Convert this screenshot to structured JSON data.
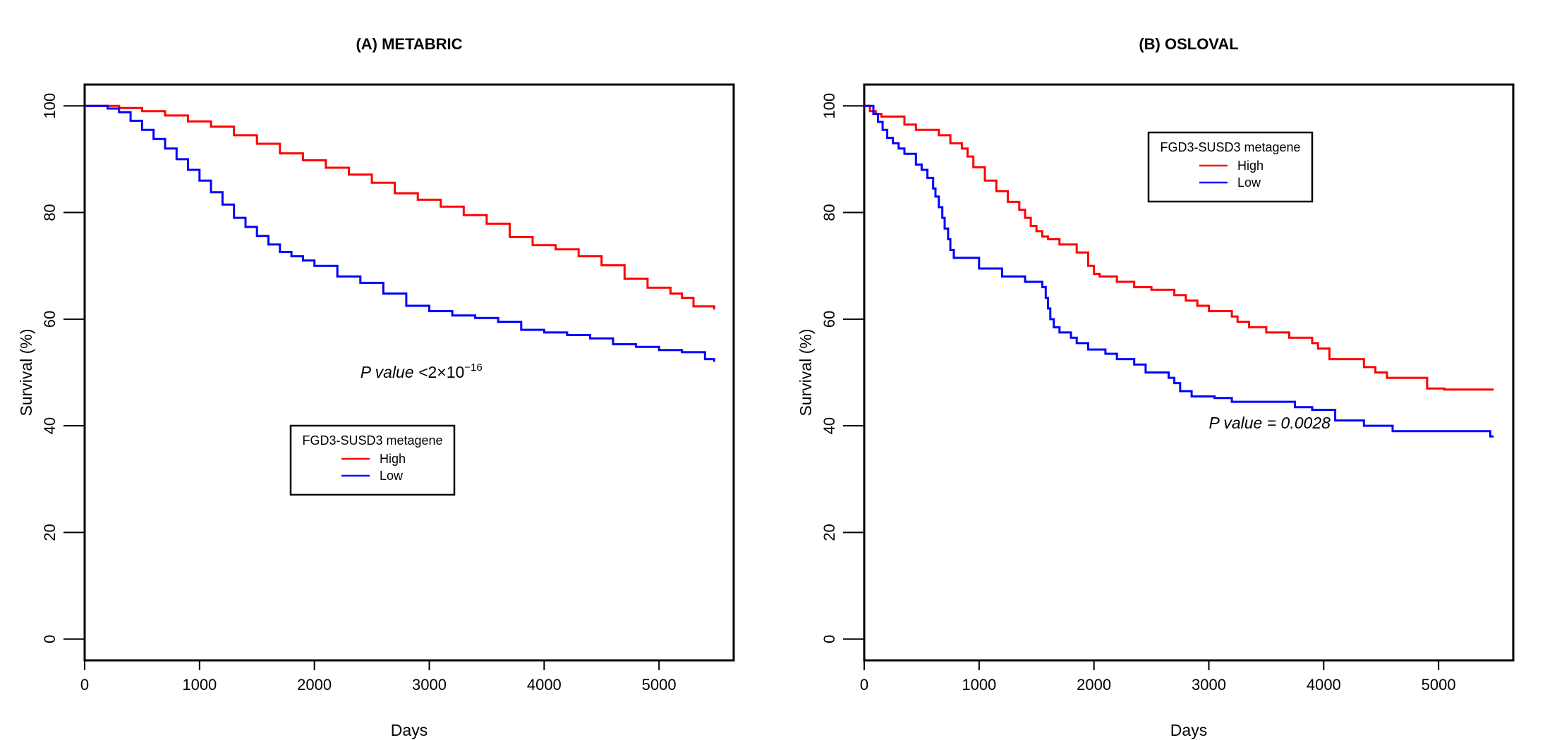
{
  "chart_data": [
    {
      "type": "line",
      "step": true,
      "title": "(A) METABRIC",
      "xlabel": "Days",
      "ylabel": "Survival (%)",
      "xlim": [
        0,
        5650
      ],
      "ylim": [
        -4,
        104
      ],
      "xticks": [
        "0",
        "1000",
        "2000",
        "3000",
        "4000",
        "5000"
      ],
      "yticks": [
        "0",
        "20",
        "40",
        "60",
        "80",
        "100"
      ],
      "annotation": {
        "prefix": "P value <",
        "base": "2×10",
        "exponent": "−16",
        "x": 2400,
        "y": 49
      },
      "legend": {
        "title": "FGD3-SUSD3 metagene",
        "placement": "center",
        "entries": [
          "High",
          "Low"
        ]
      },
      "series": [
        {
          "name": "High",
          "color": "#ff0000",
          "x": [
            0,
            300,
            500,
            700,
            900,
            1100,
            1300,
            1500,
            1700,
            1900,
            2100,
            2300,
            2500,
            2700,
            2900,
            3100,
            3300,
            3500,
            3700,
            3900,
            4100,
            4300,
            4500,
            4700,
            4900,
            5100,
            5200,
            5300,
            5480
          ],
          "y": [
            100,
            99.6,
            99.0,
            98.2,
            97.1,
            96.1,
            94.5,
            92.9,
            91.1,
            89.8,
            88.4,
            87.1,
            85.6,
            83.6,
            82.4,
            81.1,
            79.5,
            77.9,
            75.4,
            73.9,
            73.1,
            71.8,
            70.1,
            67.6,
            65.9,
            64.8,
            64.0,
            62.4,
            61.8
          ]
        },
        {
          "name": "Low",
          "color": "#0000ff",
          "x": [
            0,
            100,
            200,
            300,
            400,
            500,
            600,
            700,
            800,
            900,
            1000,
            1100,
            1200,
            1300,
            1400,
            1500,
            1600,
            1700,
            1800,
            1900,
            2000,
            2200,
            2400,
            2600,
            2800,
            3000,
            3200,
            3400,
            3600,
            3800,
            4000,
            4200,
            4400,
            4600,
            4800,
            5000,
            5200,
            5400,
            5480
          ],
          "y": [
            100,
            100,
            99.5,
            98.8,
            97.2,
            95.5,
            93.8,
            92.0,
            90.0,
            88.0,
            86.0,
            83.8,
            81.5,
            79.0,
            77.3,
            75.6,
            74.0,
            72.6,
            71.8,
            71.0,
            70.0,
            68.0,
            66.8,
            64.8,
            62.5,
            61.5,
            60.7,
            60.2,
            59.5,
            58.0,
            57.5,
            57.0,
            56.4,
            55.3,
            54.8,
            54.2,
            53.8,
            52.5,
            52.0
          ]
        }
      ]
    },
    {
      "type": "line",
      "step": true,
      "title": "(B) OSLOVAL",
      "xlabel": "Days",
      "ylabel": "Survival (%)",
      "xlim": [
        0,
        5650
      ],
      "ylim": [
        -4,
        104
      ],
      "xticks": [
        "0",
        "1000",
        "2000",
        "3000",
        "4000",
        "5000"
      ],
      "yticks": [
        "0",
        "20",
        "40",
        "60",
        "80",
        "100"
      ],
      "annotation": {
        "text": "P value = 0.0028",
        "x": 3000,
        "y": 39.5
      },
      "legend": {
        "title": "FGD3-SUSD3 metagene",
        "placement": "top-center",
        "entries": [
          "High",
          "Low"
        ]
      },
      "series": [
        {
          "name": "High",
          "color": "#ff0000",
          "x": [
            0,
            50,
            100,
            150,
            350,
            450,
            650,
            750,
            850,
            900,
            950,
            1050,
            1150,
            1250,
            1350,
            1400,
            1450,
            1500,
            1550,
            1600,
            1700,
            1850,
            1950,
            2000,
            2050,
            2200,
            2350,
            2500,
            2700,
            2800,
            2900,
            3000,
            3200,
            3250,
            3350,
            3500,
            3700,
            3900,
            3950,
            4050,
            4350,
            4450,
            4550,
            4900,
            5050,
            5480
          ],
          "y": [
            100,
            99.0,
            98.5,
            98.0,
            96.5,
            95.5,
            94.5,
            93.0,
            92.0,
            90.5,
            88.5,
            86.0,
            84.0,
            82.0,
            80.5,
            79.0,
            77.5,
            76.5,
            75.5,
            75.0,
            74.0,
            72.5,
            70.0,
            68.5,
            68.0,
            67.0,
            66.0,
            65.5,
            64.5,
            63.5,
            62.5,
            61.5,
            60.5,
            59.5,
            58.5,
            57.5,
            56.5,
            55.5,
            54.5,
            52.5,
            51.0,
            50.0,
            49.0,
            47.0,
            46.8,
            46.8
          ]
        },
        {
          "name": "Low",
          "color": "#0000ff",
          "x": [
            0,
            80,
            120,
            160,
            200,
            250,
            300,
            350,
            450,
            500,
            550,
            600,
            620,
            650,
            680,
            700,
            730,
            750,
            780,
            1000,
            1200,
            1400,
            1550,
            1580,
            1600,
            1620,
            1650,
            1700,
            1800,
            1850,
            1950,
            2100,
            2200,
            2350,
            2450,
            2650,
            2700,
            2750,
            2850,
            3050,
            3200,
            3750,
            3900,
            4100,
            4350,
            4600,
            4900,
            5450,
            5480
          ],
          "y": [
            100,
            98.5,
            97.0,
            95.5,
            94.0,
            93.0,
            92.0,
            91.0,
            89.0,
            88.0,
            86.5,
            84.5,
            83.0,
            81.0,
            79.0,
            77.0,
            75.0,
            73.0,
            71.5,
            69.5,
            68.0,
            67.0,
            66.0,
            64.0,
            62.0,
            60.0,
            58.5,
            57.5,
            56.5,
            55.5,
            54.3,
            53.5,
            52.5,
            51.5,
            50.0,
            49.0,
            48.0,
            46.5,
            45.5,
            45.2,
            44.5,
            43.5,
            43.0,
            41.0,
            40.0,
            39.0,
            39.0,
            38.0,
            38.0
          ]
        }
      ]
    }
  ]
}
